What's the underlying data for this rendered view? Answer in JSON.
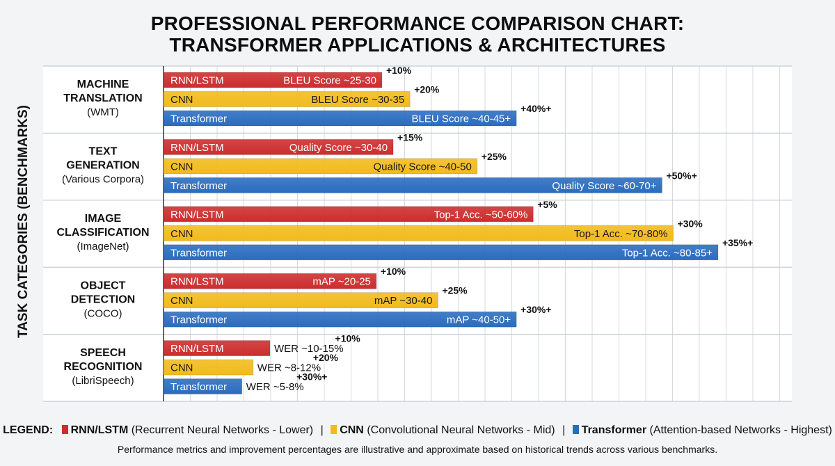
{
  "title_lines": [
    "PROFESSIONAL PERFORMANCE COMPARISON CHART:",
    "TRANSFORMER APPLICATIONS & ARCHITECTURES"
  ],
  "y_axis_title": "TASK CATEGORIES (BENCHMARKS)",
  "legend": {
    "label": "LEGEND:",
    "items": [
      {
        "name": "RNN/LSTM",
        "desc": "(Recurrent Neural Networks - Lower)",
        "color": "#cc2d2d"
      },
      {
        "name": "CNN",
        "desc": "(Convolutional Neural Networks - Mid)",
        "color": "#f2bb1c"
      },
      {
        "name": "Transformer",
        "desc": "(Attention-based Networks - Highest)",
        "color": "#2a6cbf"
      }
    ],
    "separator": "|"
  },
  "footnote": "Performance metrics and improvement percentages are illustrative and approximate based on historical trends across various benchmarks.",
  "colors": {
    "rnn": "#cc2d2d",
    "cnn": "#f2bb1c",
    "transformer": "#2a6cbf",
    "grid": "#d6dae0"
  },
  "chart_data": {
    "type": "bar",
    "orientation": "horizontal",
    "grid": true,
    "categories": [
      {
        "name": [
          "MACHINE",
          "TRANSLATION"
        ],
        "benchmark": "(WMT)"
      },
      {
        "name": [
          "TEXT",
          "GENERATION"
        ],
        "benchmark": "(Various Corpora)"
      },
      {
        "name": [
          "IMAGE",
          "CLASSIFICATION"
        ],
        "benchmark": "(ImageNet)"
      },
      {
        "name": [
          "OBJECT",
          "DETECTION"
        ],
        "benchmark": "(COCO)"
      },
      {
        "name": [
          "SPEECH",
          "RECOGNITION"
        ],
        "benchmark": "(LibriSpeech)"
      }
    ],
    "series": [
      {
        "name": "RNN/LSTM",
        "values": [
          39,
          41,
          66,
          38,
          19
        ],
        "labels": [
          "BLEU Score ~25-30",
          "Quality Score ~30-40",
          "Top-1 Acc. ~50-60%",
          "mAP ~20-25",
          "WER ~10-15%"
        ],
        "improvements": [
          "+10%",
          "+15%",
          "+5%",
          "+10%",
          "+10%"
        ]
      },
      {
        "name": "CNN",
        "values": [
          44,
          56,
          91,
          49,
          16
        ],
        "labels": [
          "BLEU Score ~30-35",
          "Quality Score ~40-50",
          "Top-1 Acc. ~70-80%",
          "mAP ~30-40",
          "WER ~8-12%"
        ],
        "improvements": [
          "+20%",
          "+25%",
          "+30%",
          "+25%",
          "+20%"
        ]
      },
      {
        "name": "Transformer",
        "values": [
          63,
          89,
          99,
          63,
          14
        ],
        "labels": [
          "BLEU Score ~40-45+",
          "Quality Score ~60-70+",
          "Top-1 Acc. ~80-85+",
          "mAP ~40-50+",
          "WER ~5-8%"
        ],
        "improvements": [
          "+40%+",
          "+50%+",
          "+35%+",
          "+30%+",
          "+30%+"
        ]
      }
    ]
  }
}
